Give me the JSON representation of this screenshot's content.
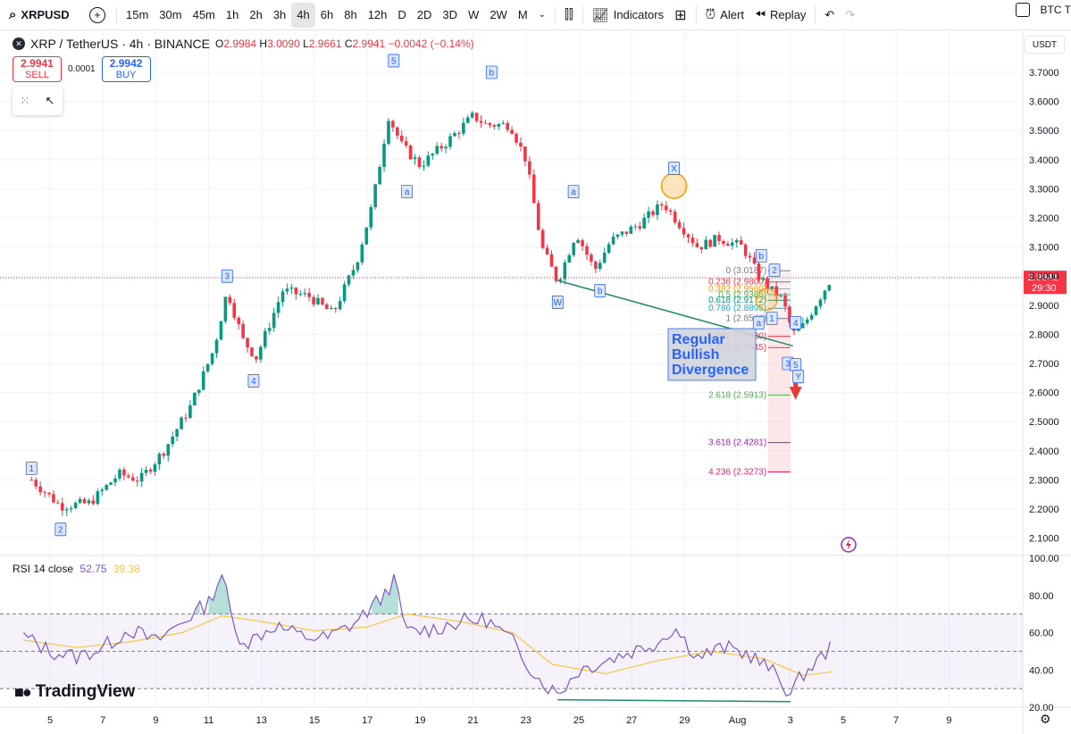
{
  "toolbar": {
    "symbol": "XRPUSD",
    "intervals": [
      "15m",
      "30m",
      "45m",
      "1h",
      "2h",
      "3h",
      "4h",
      "6h",
      "8h",
      "12h",
      "D",
      "2D",
      "3D",
      "W",
      "2W",
      "M"
    ],
    "active_interval": "4h",
    "indicators_label": "Indicators",
    "alert_label": "Alert",
    "replay_label": "Replay",
    "compare_label": "BTC T"
  },
  "legend": {
    "title": "XRP / TetherUS · 4h · BINANCE",
    "o_label": "O",
    "o_value": "2.9984",
    "h_label": "H",
    "h_value": "3.0090",
    "l_label": "L",
    "l_value": "2.9661",
    "c_label": "C",
    "c_value": "2.9941",
    "change": "−0.0042 (−0.14%)"
  },
  "trade": {
    "sell_price": "2.9941",
    "sell_label": "SELL",
    "spread": "0.0001",
    "buy_price": "2.9942",
    "buy_label": "BUY"
  },
  "currency_button": "USDT",
  "last_price_tag": {
    "price": "2.9941",
    "countdown": "29:30"
  },
  "watermark": "TradingView",
  "colors": {
    "up": "#089981",
    "down": "#f23645",
    "rsi": "#7e57c2",
    "rsi_ma": "#f7c843",
    "wave_label": "#2962ff",
    "divergence": "#1f8a6e"
  },
  "annotation": {
    "text_lines": [
      "Regular",
      "Bullish",
      "Divergence"
    ]
  },
  "chart_data": [
    {
      "type": "candlestick",
      "title": "XRP / TetherUS · 4h · BINANCE",
      "ylim": [
        2.05,
        3.78
      ],
      "y_ticks": [
        "3.7000",
        "3.6000",
        "3.5000",
        "3.4000",
        "3.3000",
        "3.2000",
        "3.1000",
        "3.0000",
        "2.9000",
        "2.8000",
        "2.7000",
        "2.6000",
        "2.5000",
        "2.4000",
        "2.3000",
        "2.2000",
        "2.1000"
      ],
      "x_ticks": [
        "5",
        "7",
        "9",
        "11",
        "13",
        "15",
        "17",
        "19",
        "21",
        "23",
        "25",
        "27",
        "29",
        "Aug",
        "3",
        "5",
        "7",
        "9"
      ],
      "path_points": [
        {
          "day": 4.3,
          "price": 2.3
        },
        {
          "day": 5.4,
          "price": 2.21
        },
        {
          "day": 6.5,
          "price": 2.22
        },
        {
          "day": 7.6,
          "price": 2.32
        },
        {
          "day": 8.4,
          "price": 2.3
        },
        {
          "day": 9.3,
          "price": 2.4
        },
        {
          "day": 10.3,
          "price": 2.55
        },
        {
          "day": 11.2,
          "price": 2.75
        },
        {
          "day": 11.7,
          "price": 2.95
        },
        {
          "day": 12.3,
          "price": 2.78
        },
        {
          "day": 12.8,
          "price": 2.72
        },
        {
          "day": 13.8,
          "price": 2.95
        },
        {
          "day": 14.8,
          "price": 2.93
        },
        {
          "day": 15.7,
          "price": 2.87
        },
        {
          "day": 16.6,
          "price": 3.05
        },
        {
          "day": 17.2,
          "price": 3.25
        },
        {
          "day": 17.8,
          "price": 3.55
        },
        {
          "day": 18.3,
          "price": 3.45
        },
        {
          "day": 19.0,
          "price": 3.38
        },
        {
          "day": 20.0,
          "price": 3.46
        },
        {
          "day": 21.0,
          "price": 3.55
        },
        {
          "day": 21.5,
          "price": 3.52
        },
        {
          "day": 22.4,
          "price": 3.52
        },
        {
          "day": 23.0,
          "price": 3.4
        },
        {
          "day": 23.6,
          "price": 3.1
        },
        {
          "day": 24.2,
          "price": 2.98
        },
        {
          "day": 24.9,
          "price": 3.15
        },
        {
          "day": 25.6,
          "price": 3.02
        },
        {
          "day": 26.2,
          "price": 3.12
        },
        {
          "day": 27.3,
          "price": 3.18
        },
        {
          "day": 28.2,
          "price": 3.25
        },
        {
          "day": 28.8,
          "price": 3.18
        },
        {
          "day": 29.5,
          "price": 3.1
        },
        {
          "day": 30.3,
          "price": 3.13
        },
        {
          "day": 31.2,
          "price": 3.1
        },
        {
          "day": 31.8,
          "price": 3.0
        },
        {
          "day": 32.3,
          "price": 2.95
        },
        {
          "day": 32.7,
          "price": 2.92
        },
        {
          "day": 33.1,
          "price": 2.8
        },
        {
          "day": 33.5,
          "price": 2.83
        },
        {
          "day": 34.0,
          "price": 2.91
        },
        {
          "day": 34.6,
          "price": 3.0
        }
      ],
      "wave_labels": [
        {
          "text": "1",
          "day": 4.3,
          "price": 2.34
        },
        {
          "text": "2",
          "day": 5.4,
          "price": 2.13
        },
        {
          "text": "3",
          "day": 11.7,
          "price": 3.0
        },
        {
          "text": "4",
          "day": 12.7,
          "price": 2.64
        },
        {
          "text": "5",
          "day": 18.0,
          "price": 3.74
        },
        {
          "text": "a",
          "day": 18.5,
          "price": 3.29
        },
        {
          "text": "b",
          "day": 21.7,
          "price": 3.7
        },
        {
          "text": "W",
          "day": 24.2,
          "price": 2.91
        },
        {
          "text": "a",
          "day": 24.8,
          "price": 3.29
        },
        {
          "text": "b",
          "day": 25.8,
          "price": 2.95
        },
        {
          "text": "X",
          "day": 28.6,
          "price": 3.37
        },
        {
          "text": "b",
          "day": 31.9,
          "price": 3.07
        },
        {
          "text": "2",
          "day": 32.4,
          "price": 3.02
        },
        {
          "text": "a",
          "day": 31.8,
          "price": 2.84
        },
        {
          "text": "1",
          "day": 32.3,
          "price": 2.855
        },
        {
          "text": "4",
          "day": 33.2,
          "price": 2.84
        },
        {
          "text": "3",
          "day": 32.9,
          "price": 2.7
        },
        {
          "text": "5",
          "day": 33.2,
          "price": 2.695
        },
        {
          "text": "Y",
          "day": 33.3,
          "price": 2.655
        }
      ],
      "fib_levels": [
        {
          "label": "0 (3.0187)",
          "price": 3.0187,
          "color": "#787b86"
        },
        {
          "label": "0.236 (2.9800)",
          "price": 2.98,
          "color": "#f23645"
        },
        {
          "label": "0.382 (2.9560)",
          "price": 2.956,
          "color": "#ff9800"
        },
        {
          "label": "0.5 (2.9366)",
          "price": 2.9366,
          "color": "#4caf50"
        },
        {
          "label": "0.618 (2.9172)",
          "price": 2.9172,
          "color": "#089981"
        },
        {
          "label": "0.786 (2.8895)",
          "price": 2.8895,
          "color": "#00bcd4"
        },
        {
          "label": "1 (2.8543)",
          "price": 2.8543,
          "color": "#787b86"
        },
        {
          "label": "1.382 (2.7930)",
          "price": 2.793,
          "color": "#f23645"
        },
        {
          "label": "1.618 (2.7545)",
          "price": 2.7545,
          "color": "#f23645"
        },
        {
          "label": "2.618 (2.5913)",
          "price": 2.5913,
          "color": "#4caf50"
        },
        {
          "label": "3.618 (2.4281)",
          "price": 2.4281,
          "color": "#9c27b0"
        },
        {
          "label": "4.236 (2.3273)",
          "price": 2.3273,
          "color": "#e91e63"
        }
      ]
    },
    {
      "type": "line",
      "title": "RSI 14 close",
      "series": [
        {
          "name": "RSI",
          "value": "52.75"
        },
        {
          "name": "RSI-based MA",
          "value": "39.38"
        }
      ],
      "ylim": [
        20,
        100
      ],
      "y_ticks": [
        "100.00",
        "80.00",
        "60.00",
        "40.00",
        "20.00"
      ],
      "bands": {
        "upper": 70,
        "middle": 50,
        "lower": 30
      },
      "rsi_points": [
        {
          "day": 4.0,
          "v": 58
        },
        {
          "day": 5.0,
          "v": 50
        },
        {
          "day": 6.0,
          "v": 47
        },
        {
          "day": 7.0,
          "v": 52
        },
        {
          "day": 8.0,
          "v": 62
        },
        {
          "day": 9.0,
          "v": 55
        },
        {
          "day": 10.0,
          "v": 66
        },
        {
          "day": 11.0,
          "v": 76
        },
        {
          "day": 11.5,
          "v": 92
        },
        {
          "day": 12.0,
          "v": 60
        },
        {
          "day": 12.5,
          "v": 55
        },
        {
          "day": 13.5,
          "v": 64
        },
        {
          "day": 14.5,
          "v": 58
        },
        {
          "day": 15.5,
          "v": 57
        },
        {
          "day": 16.5,
          "v": 65
        },
        {
          "day": 17.5,
          "v": 78
        },
        {
          "day": 18.0,
          "v": 88
        },
        {
          "day": 18.5,
          "v": 60
        },
        {
          "day": 19.5,
          "v": 62
        },
        {
          "day": 20.5,
          "v": 66
        },
        {
          "day": 21.5,
          "v": 67
        },
        {
          "day": 22.5,
          "v": 55
        },
        {
          "day": 23.5,
          "v": 35
        },
        {
          "day": 24.2,
          "v": 27
        },
        {
          "day": 25.0,
          "v": 40
        },
        {
          "day": 26.0,
          "v": 45
        },
        {
          "day": 27.0,
          "v": 50
        },
        {
          "day": 28.0,
          "v": 55
        },
        {
          "day": 28.6,
          "v": 63
        },
        {
          "day": 29.5,
          "v": 47
        },
        {
          "day": 30.5,
          "v": 52
        },
        {
          "day": 31.5,
          "v": 48
        },
        {
          "day": 32.5,
          "v": 37
        },
        {
          "day": 33.0,
          "v": 27
        },
        {
          "day": 33.5,
          "v": 38
        },
        {
          "day": 34.2,
          "v": 47
        },
        {
          "day": 34.6,
          "v": 53
        }
      ],
      "ma_points": [
        {
          "day": 4.0,
          "v": 56
        },
        {
          "day": 6.0,
          "v": 52
        },
        {
          "day": 8.0,
          "v": 55
        },
        {
          "day": 10.0,
          "v": 60
        },
        {
          "day": 11.5,
          "v": 69
        },
        {
          "day": 13.0,
          "v": 66
        },
        {
          "day": 15.0,
          "v": 61
        },
        {
          "day": 17.0,
          "v": 63
        },
        {
          "day": 18.5,
          "v": 70
        },
        {
          "day": 20.5,
          "v": 66
        },
        {
          "day": 22.5,
          "v": 60
        },
        {
          "day": 24.0,
          "v": 43
        },
        {
          "day": 26.0,
          "v": 38
        },
        {
          "day": 28.0,
          "v": 45
        },
        {
          "day": 30.0,
          "v": 50
        },
        {
          "day": 32.0,
          "v": 46
        },
        {
          "day": 33.5,
          "v": 37
        },
        {
          "day": 34.6,
          "v": 39
        }
      ]
    }
  ]
}
